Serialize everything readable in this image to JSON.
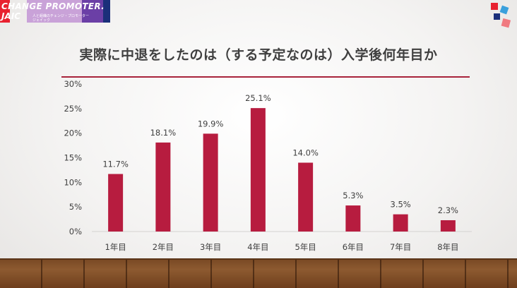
{
  "logo": {
    "line1": "CHANGE PROMOTER.",
    "line2": "JAIC",
    "sub1": "人と組織のチェンジ・プロモーター",
    "sub2": "ジェイック"
  },
  "title": "実際に中退をしたのは（する予定なのは）入学後何年目か",
  "colors": {
    "bar": "#b71c3f",
    "rule": "#a8233b",
    "text": "#404040"
  },
  "chart_data": {
    "type": "bar",
    "title": "実際に中退をしたのは（する予定なのは）入学後何年目か",
    "categories": [
      "1年目",
      "2年目",
      "3年目",
      "4年目",
      "5年目",
      "6年目",
      "7年目",
      "8年目"
    ],
    "values": [
      11.7,
      18.1,
      19.9,
      25.1,
      14.0,
      5.3,
      3.5,
      2.3
    ],
    "value_labels": [
      "11.7%",
      "18.1%",
      "19.9%",
      "25.1%",
      "14.0%",
      "5.3%",
      "3.5%",
      "2.3%"
    ],
    "yticks": [
      0,
      5,
      10,
      15,
      20,
      25,
      30
    ],
    "ytick_labels": [
      "0%",
      "5%",
      "10%",
      "15%",
      "20%",
      "25%",
      "30%"
    ],
    "ylim": [
      0,
      30
    ],
    "xlabel": "",
    "ylabel": "",
    "grid": false,
    "legend": "none"
  }
}
